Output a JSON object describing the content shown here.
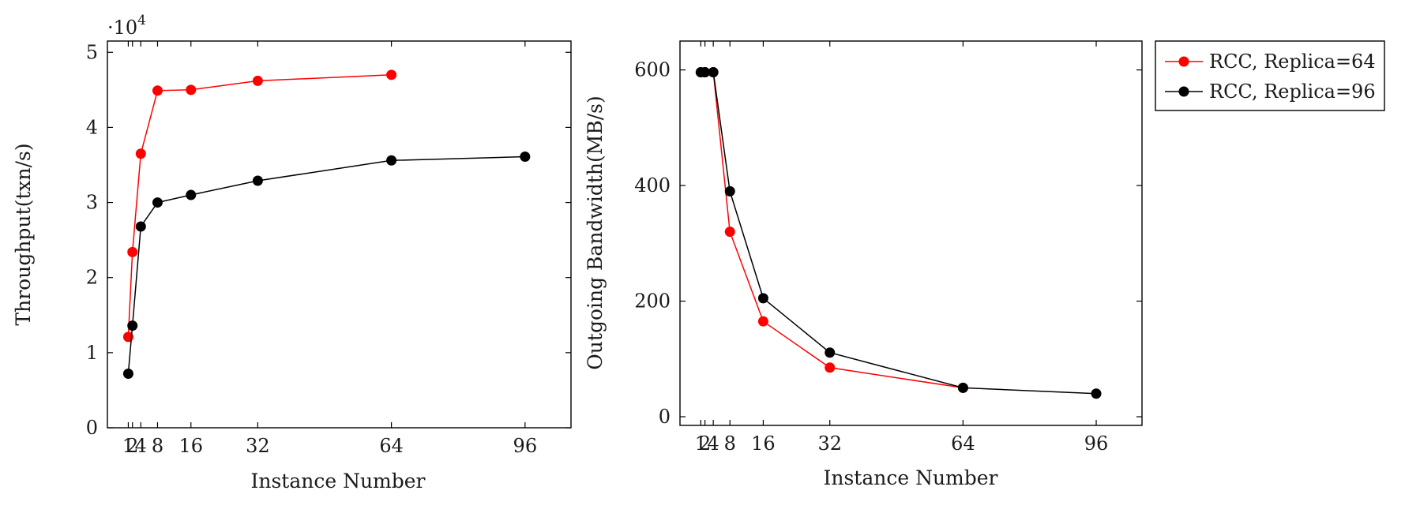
{
  "chart_data": [
    {
      "type": "line",
      "xlabel": "Instance Number",
      "ylabel": "Throughput(txn/s)",
      "y_scale_label": {
        "base": "·10",
        "exponent": "4"
      },
      "xticks": [
        1,
        2,
        4,
        8,
        16,
        32,
        64,
        96
      ],
      "xlim": [
        -4,
        107
      ],
      "yticks": [
        0,
        1,
        2,
        3,
        4,
        5
      ],
      "ylim": [
        0,
        5.15
      ],
      "series": [
        {
          "name": "RCC, Replica=64",
          "color": "#ff0000",
          "x": [
            1,
            2,
            4,
            8,
            16,
            32,
            64
          ],
          "y": [
            1.21,
            2.34,
            3.65,
            4.49,
            4.5,
            4.62,
            4.7
          ]
        },
        {
          "name": "RCC, Replica=96",
          "color": "#000000",
          "x": [
            1,
            2,
            4,
            8,
            16,
            32,
            64,
            96
          ],
          "y": [
            0.72,
            1.36,
            2.68,
            3.0,
            3.1,
            3.29,
            3.56,
            3.61
          ]
        }
      ]
    },
    {
      "type": "line",
      "xlabel": "Instance Number",
      "ylabel": "Outgoing Bandwidth(MB/s)",
      "xticks": [
        1,
        2,
        4,
        8,
        16,
        32,
        64,
        96
      ],
      "xlim": [
        -4,
        107
      ],
      "yticks": [
        0,
        200,
        400,
        600
      ],
      "ylim": [
        -15,
        650
      ],
      "series": [
        {
          "name": "RCC, Replica=64",
          "color": "#ff0000",
          "x": [
            1,
            2,
            4,
            8,
            16,
            32,
            64
          ],
          "y": [
            596,
            596,
            596,
            320,
            165,
            85,
            50
          ]
        },
        {
          "name": "RCC, Replica=96",
          "color": "#000000",
          "x": [
            1,
            2,
            4,
            8,
            16,
            32,
            64,
            96
          ],
          "y": [
            596,
            596,
            596,
            390,
            205,
            111,
            50,
            40
          ]
        }
      ]
    }
  ],
  "legend": {
    "position": "outside-right",
    "entries": [
      {
        "label": "RCC, Replica=64",
        "color": "#ff0000"
      },
      {
        "label": "RCC, Replica=96",
        "color": "#000000"
      }
    ]
  }
}
